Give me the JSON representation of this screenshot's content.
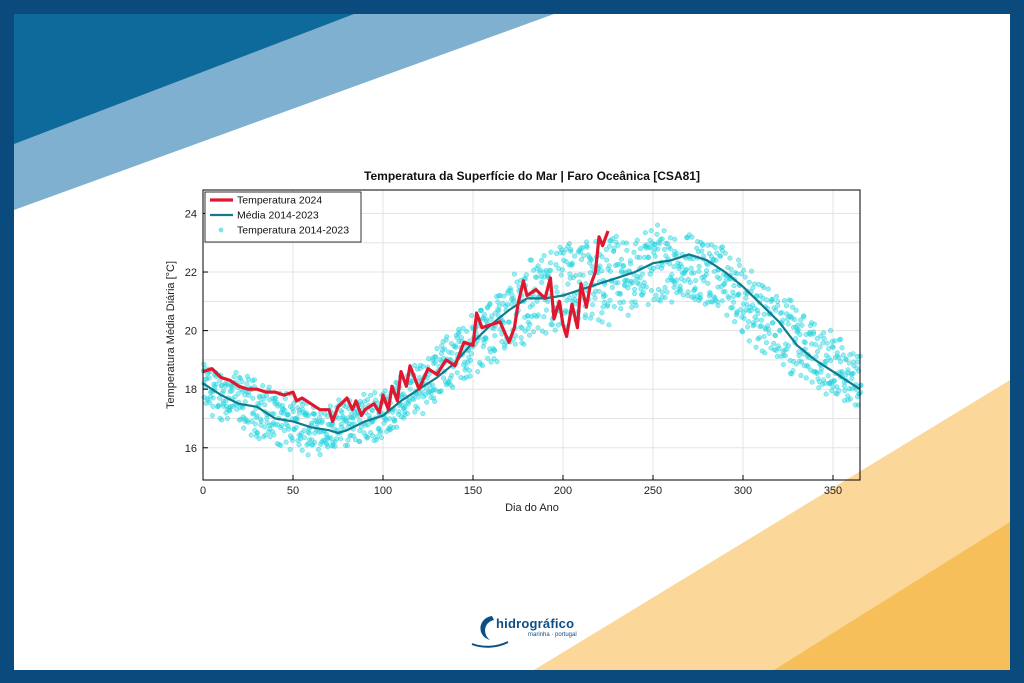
{
  "colors": {
    "frame": "#0a4a7c",
    "blue_dark": "#0e6a9a",
    "blue_light": "#7fb0cf",
    "gold_light": "#fbd89a",
    "gold": "#f6bf5a",
    "temp2024": "#e0182f",
    "mean": "#117a8b",
    "scatter": "#22d3de"
  },
  "logo": {
    "text": "hidrográfico",
    "sub": "marinha · portugal"
  },
  "chart_data": {
    "type": "line",
    "title": "Temperatura da Superfície do Mar | Faro Oceânica [CSA81]",
    "xlabel": "Dia do Ano",
    "ylabel": "Temperatura Média Diária [°C]",
    "xlim": [
      0,
      365
    ],
    "ylim": [
      14.9,
      24.8
    ],
    "xticks": [
      0,
      50,
      100,
      150,
      200,
      250,
      300,
      350
    ],
    "yticks": [
      16,
      18,
      20,
      22,
      24
    ],
    "grid": true,
    "legend_position": "top-left",
    "series": [
      {
        "name": "Temperatura 2024",
        "kind": "line",
        "x": [
          0,
          5,
          10,
          15,
          20,
          25,
          30,
          35,
          40,
          45,
          50,
          52,
          55,
          60,
          65,
          70,
          72,
          75,
          80,
          83,
          85,
          88,
          90,
          95,
          98,
          100,
          103,
          105,
          108,
          110,
          113,
          115,
          120,
          125,
          130,
          135,
          140,
          145,
          150,
          152,
          155,
          160,
          165,
          170,
          173,
          175,
          178,
          180,
          185,
          190,
          193,
          195,
          198,
          200,
          202,
          205,
          208,
          210,
          213,
          215,
          218,
          220,
          222,
          225
        ],
        "y": [
          18.6,
          18.7,
          18.4,
          18.3,
          18.1,
          18.0,
          18.0,
          17.9,
          17.9,
          17.8,
          17.9,
          17.6,
          17.7,
          17.5,
          17.3,
          17.3,
          16.9,
          17.4,
          17.7,
          17.3,
          17.6,
          17.1,
          17.3,
          17.5,
          17.2,
          17.8,
          17.3,
          18.1,
          17.6,
          18.6,
          18.1,
          18.8,
          18.0,
          18.7,
          18.5,
          19.0,
          18.8,
          19.6,
          19.5,
          20.6,
          20.1,
          20.2,
          20.3,
          19.6,
          20.1,
          20.9,
          21.7,
          21.2,
          21.4,
          21.1,
          21.8,
          20.4,
          21.0,
          20.2,
          19.8,
          20.9,
          20.1,
          21.6,
          20.8,
          21.5,
          22.0,
          23.2,
          22.9,
          23.4
        ]
      },
      {
        "name": "Média 2014-2023",
        "kind": "line",
        "x": [
          0,
          10,
          20,
          30,
          40,
          50,
          60,
          70,
          75,
          80,
          90,
          100,
          110,
          120,
          130,
          140,
          150,
          160,
          170,
          180,
          190,
          200,
          210,
          220,
          230,
          240,
          250,
          260,
          270,
          280,
          290,
          300,
          310,
          320,
          330,
          340,
          350,
          365
        ],
        "y": [
          18.2,
          17.8,
          17.5,
          17.4,
          17.0,
          16.9,
          16.7,
          16.6,
          16.5,
          16.6,
          16.9,
          17.1,
          17.6,
          18.0,
          18.4,
          18.9,
          19.6,
          20.2,
          20.7,
          21.1,
          21.1,
          21.2,
          21.4,
          21.6,
          21.8,
          22.0,
          22.3,
          22.4,
          22.6,
          22.4,
          22.0,
          21.5,
          20.9,
          20.3,
          19.5,
          19.0,
          18.6,
          18.0
        ]
      },
      {
        "name": "Temperatura 2014-2023",
        "kind": "scatter",
        "envelope": {
          "x": [
            0,
            20,
            40,
            50,
            60,
            70,
            80,
            100,
            120,
            140,
            160,
            180,
            200,
            220,
            240,
            250,
            270,
            290,
            300,
            320,
            340,
            365
          ],
          "lower": [
            17.0,
            16.4,
            15.8,
            15.6,
            15.6,
            15.7,
            15.8,
            16.0,
            16.9,
            17.8,
            18.5,
            19.2,
            19.3,
            19.6,
            20.0,
            20.4,
            20.6,
            20.1,
            19.3,
            18.4,
            17.6,
            17.2
          ],
          "upper": [
            19.1,
            18.8,
            18.3,
            18.0,
            17.8,
            17.7,
            17.9,
            18.3,
            19.3,
            20.3,
            21.6,
            22.9,
            23.6,
            23.6,
            23.8,
            24.2,
            23.8,
            23.2,
            22.6,
            21.9,
            20.6,
            19.5
          ]
        }
      }
    ]
  }
}
